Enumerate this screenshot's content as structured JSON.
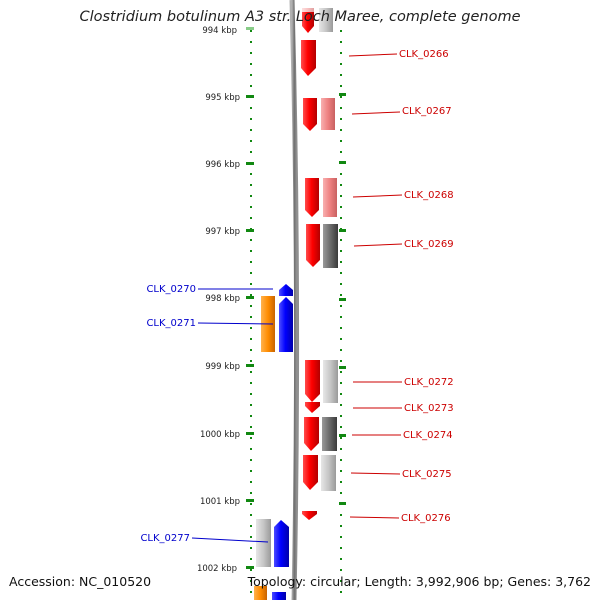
{
  "title": "Clostridium botulinum A3 str. Loch Maree, complete genome",
  "footer": {
    "accession": "Accession: NC_010520",
    "topology": "Topology: circular; Length: 3,992,906 bp; Genes: 3,762"
  },
  "ruler": {
    "labels": [
      "994 kbp",
      "995 kbp",
      "996 kbp",
      "997 kbp",
      "998 kbp",
      "999 kbp",
      "1000 kbp",
      "1001 kbp",
      "1002 kbp"
    ]
  },
  "genes": {
    "right": [
      {
        "label": "CLK_0266"
      },
      {
        "label": "CLK_0267"
      },
      {
        "label": "CLK_0268"
      },
      {
        "label": "CLK_0269"
      },
      {
        "label": "CLK_0272"
      },
      {
        "label": "CLK_0273"
      },
      {
        "label": "CLK_0274"
      },
      {
        "label": "CLK_0275"
      },
      {
        "label": "CLK_0276"
      }
    ],
    "left": [
      {
        "label": "CLK_0270"
      },
      {
        "label": "CLK_0271"
      },
      {
        "label": "CLK_0277"
      }
    ]
  },
  "colors": {
    "reverse_gene": "#ff0000",
    "forward_gene": "#0000ff",
    "orange_feature": "#ff8c00",
    "right_label": "#cc0000",
    "left_label": "#0000cc",
    "tick": "#118811",
    "backbone": "#808080"
  }
}
